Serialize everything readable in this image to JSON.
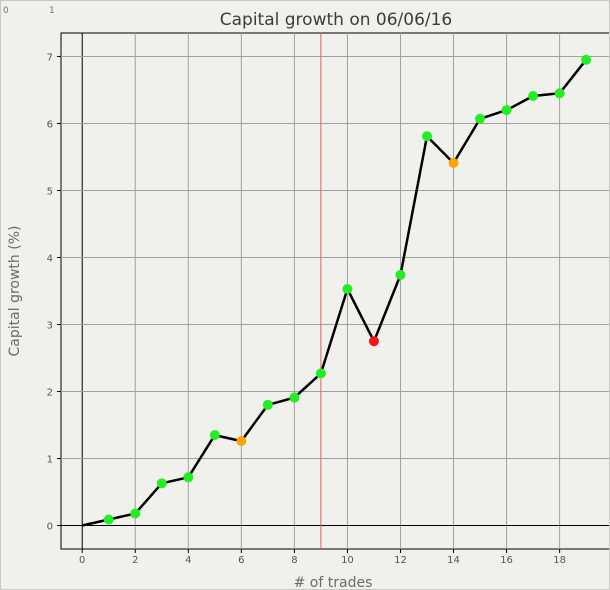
{
  "chart_data": {
    "type": "line",
    "title": "Capital growth on 06/06/16",
    "xlabel": "# of trades",
    "ylabel": "Capital growth (%)",
    "xlim": [
      -0.8,
      19.9
    ],
    "ylim": [
      -0.35,
      7.35
    ],
    "x_ticks": [
      0,
      2,
      4,
      6,
      8,
      10,
      12,
      14,
      16,
      18
    ],
    "y_ticks": [
      0,
      1,
      2,
      3,
      4,
      5,
      6,
      7
    ],
    "grid": true,
    "x_gridlines": [
      0,
      2,
      4,
      6,
      8,
      10,
      12,
      14,
      16,
      18
    ],
    "y_gridlines": [
      0,
      1,
      2,
      3,
      4,
      5,
      6,
      7
    ],
    "vertical_marker_x": 9,
    "vertical_marker_color": "#e06060",
    "corner_labels": [
      "0",
      "1"
    ],
    "line_color": "#000000",
    "point_colors": {
      "green": "#22ee22",
      "orange": "#ffa500",
      "red": "#ff1111"
    },
    "series": [
      {
        "x": [
          0,
          1,
          2,
          3,
          4,
          5,
          6,
          7,
          8,
          9,
          10,
          11,
          12,
          13,
          14,
          15,
          16,
          17,
          18,
          19
        ],
        "values": [
          0.0,
          0.09,
          0.18,
          0.63,
          0.72,
          1.35,
          1.26,
          1.8,
          1.91,
          2.27,
          3.53,
          2.75,
          3.74,
          5.81,
          5.41,
          6.07,
          6.2,
          6.41,
          6.45,
          6.95
        ],
        "point_status": [
          "none",
          "green",
          "green",
          "green",
          "green",
          "green",
          "orange",
          "green",
          "green",
          "green",
          "green",
          "red",
          "green",
          "green",
          "orange",
          "green",
          "green",
          "green",
          "green",
          "green"
        ]
      }
    ]
  }
}
